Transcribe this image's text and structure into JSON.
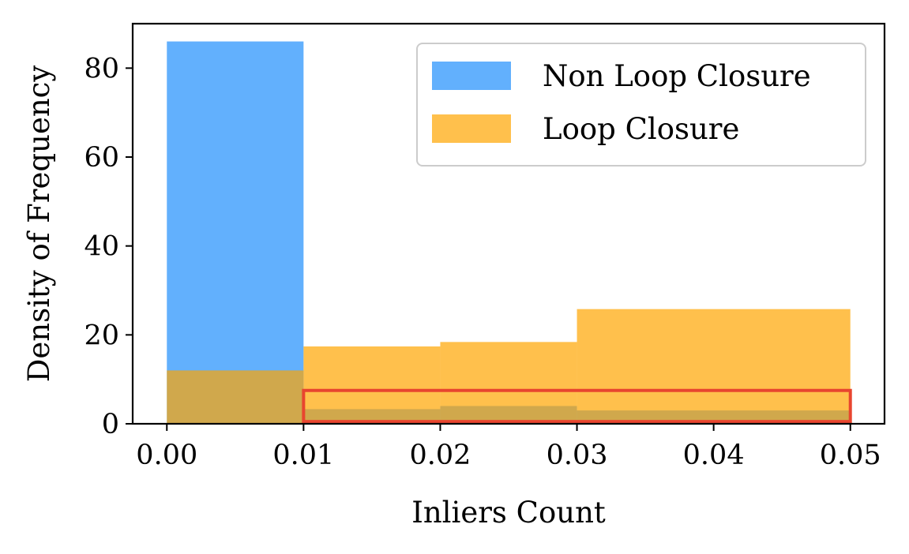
{
  "chart_data": {
    "type": "bar",
    "xlabel": "Inliers Count",
    "ylabel": "Density of Frequency",
    "xlim": [
      -0.0025,
      0.0525
    ],
    "ylim": [
      0,
      90
    ],
    "x_ticks": [
      0.0,
      0.01,
      0.02,
      0.03,
      0.04,
      0.05
    ],
    "x_tick_labels": [
      "0.00",
      "0.01",
      "0.02",
      "0.03",
      "0.04",
      "0.05"
    ],
    "y_ticks": [
      0,
      20,
      40,
      60,
      80
    ],
    "y_tick_labels": [
      "0",
      "20",
      "40",
      "60",
      "80"
    ],
    "grid": false,
    "legend_position": "top-right",
    "series": [
      {
        "name": "Non Loop Closure",
        "color": "#1f8ffc",
        "bins": [
          {
            "x0": 0.0,
            "x1": 0.01,
            "value": 86
          },
          {
            "x0": 0.01,
            "x1": 0.02,
            "value": 3.3
          },
          {
            "x0": 0.02,
            "x1": 0.03,
            "value": 4.0
          },
          {
            "x0": 0.03,
            "x1": 0.05,
            "value": 3.0
          }
        ]
      },
      {
        "name": "Loop Closure",
        "color": "#ffa500",
        "bins": [
          {
            "x0": 0.0,
            "x1": 0.01,
            "value": 12
          },
          {
            "x0": 0.01,
            "x1": 0.02,
            "value": 17.4
          },
          {
            "x0": 0.02,
            "x1": 0.03,
            "value": 18.4
          },
          {
            "x0": 0.03,
            "x1": 0.05,
            "value": 25.8
          }
        ]
      }
    ],
    "highlight": {
      "color": "#e8452f",
      "x0": 0.01,
      "x1": 0.05,
      "y0": 0.5,
      "y1": 7.5
    }
  }
}
